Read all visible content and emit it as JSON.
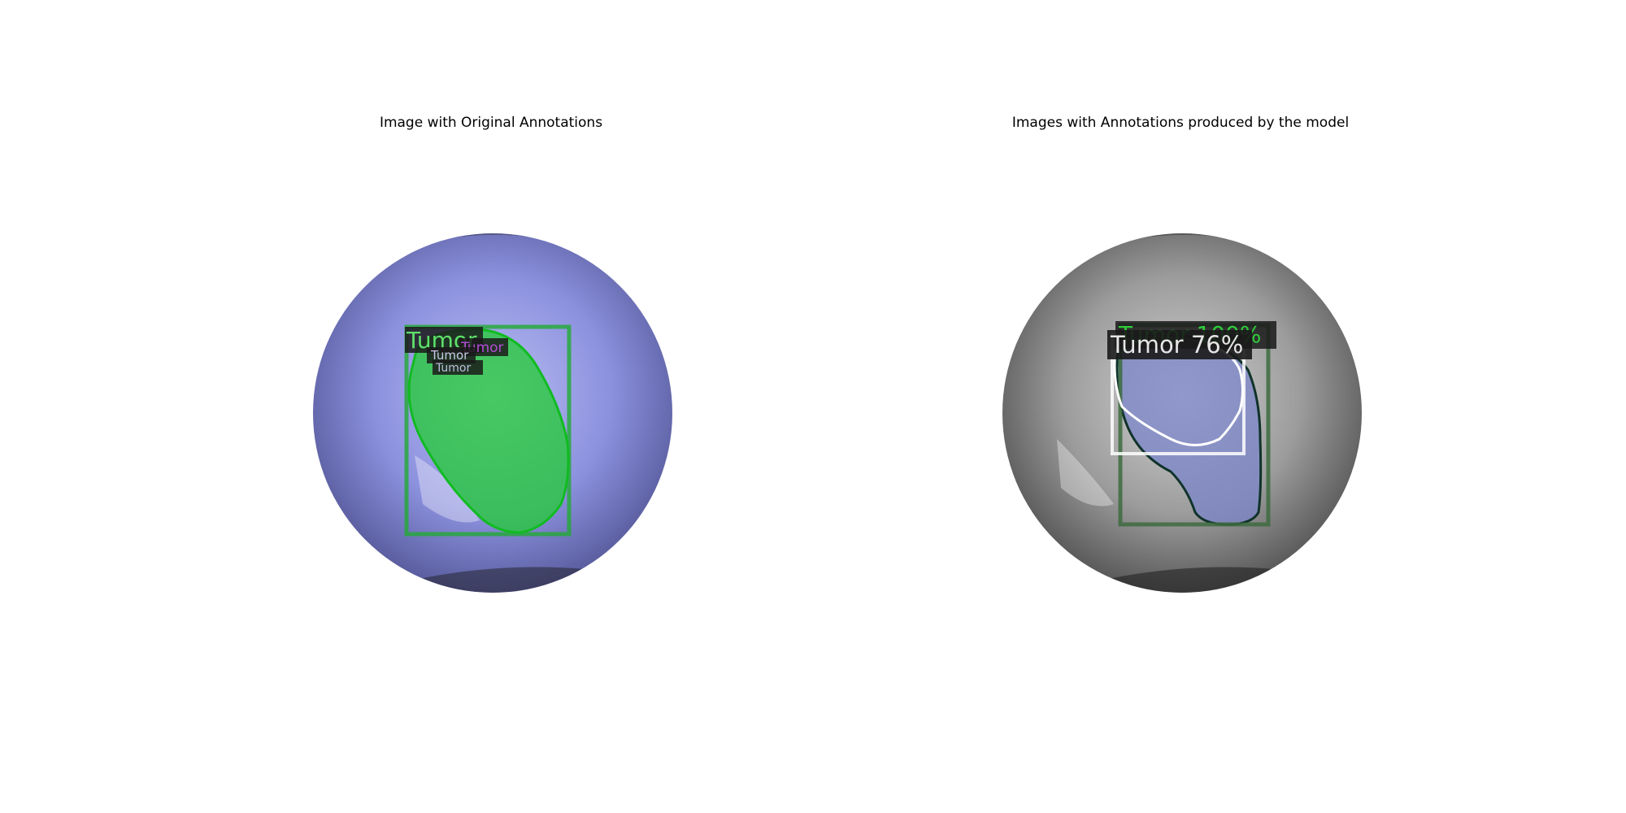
{
  "left_panel": {
    "title": "Image with Original Annotations",
    "labels": {
      "main": "Tumor",
      "small_a": "Tumor",
      "small_b": "Tumor",
      "small_c": "Tumor"
    },
    "colors": {
      "mask": "#22cc33",
      "label_magenta": "#b44bd8",
      "tissue": "#8a8fdc"
    }
  },
  "right_panel": {
    "title": "Images with Annotations produced by the model",
    "labels": {
      "high": "Tumor 100%",
      "low": "Tumor 76%"
    },
    "colors": {
      "box_green": "#3d6b3f",
      "box_white": "#ffffff",
      "mask": "#7b86c9"
    }
  }
}
